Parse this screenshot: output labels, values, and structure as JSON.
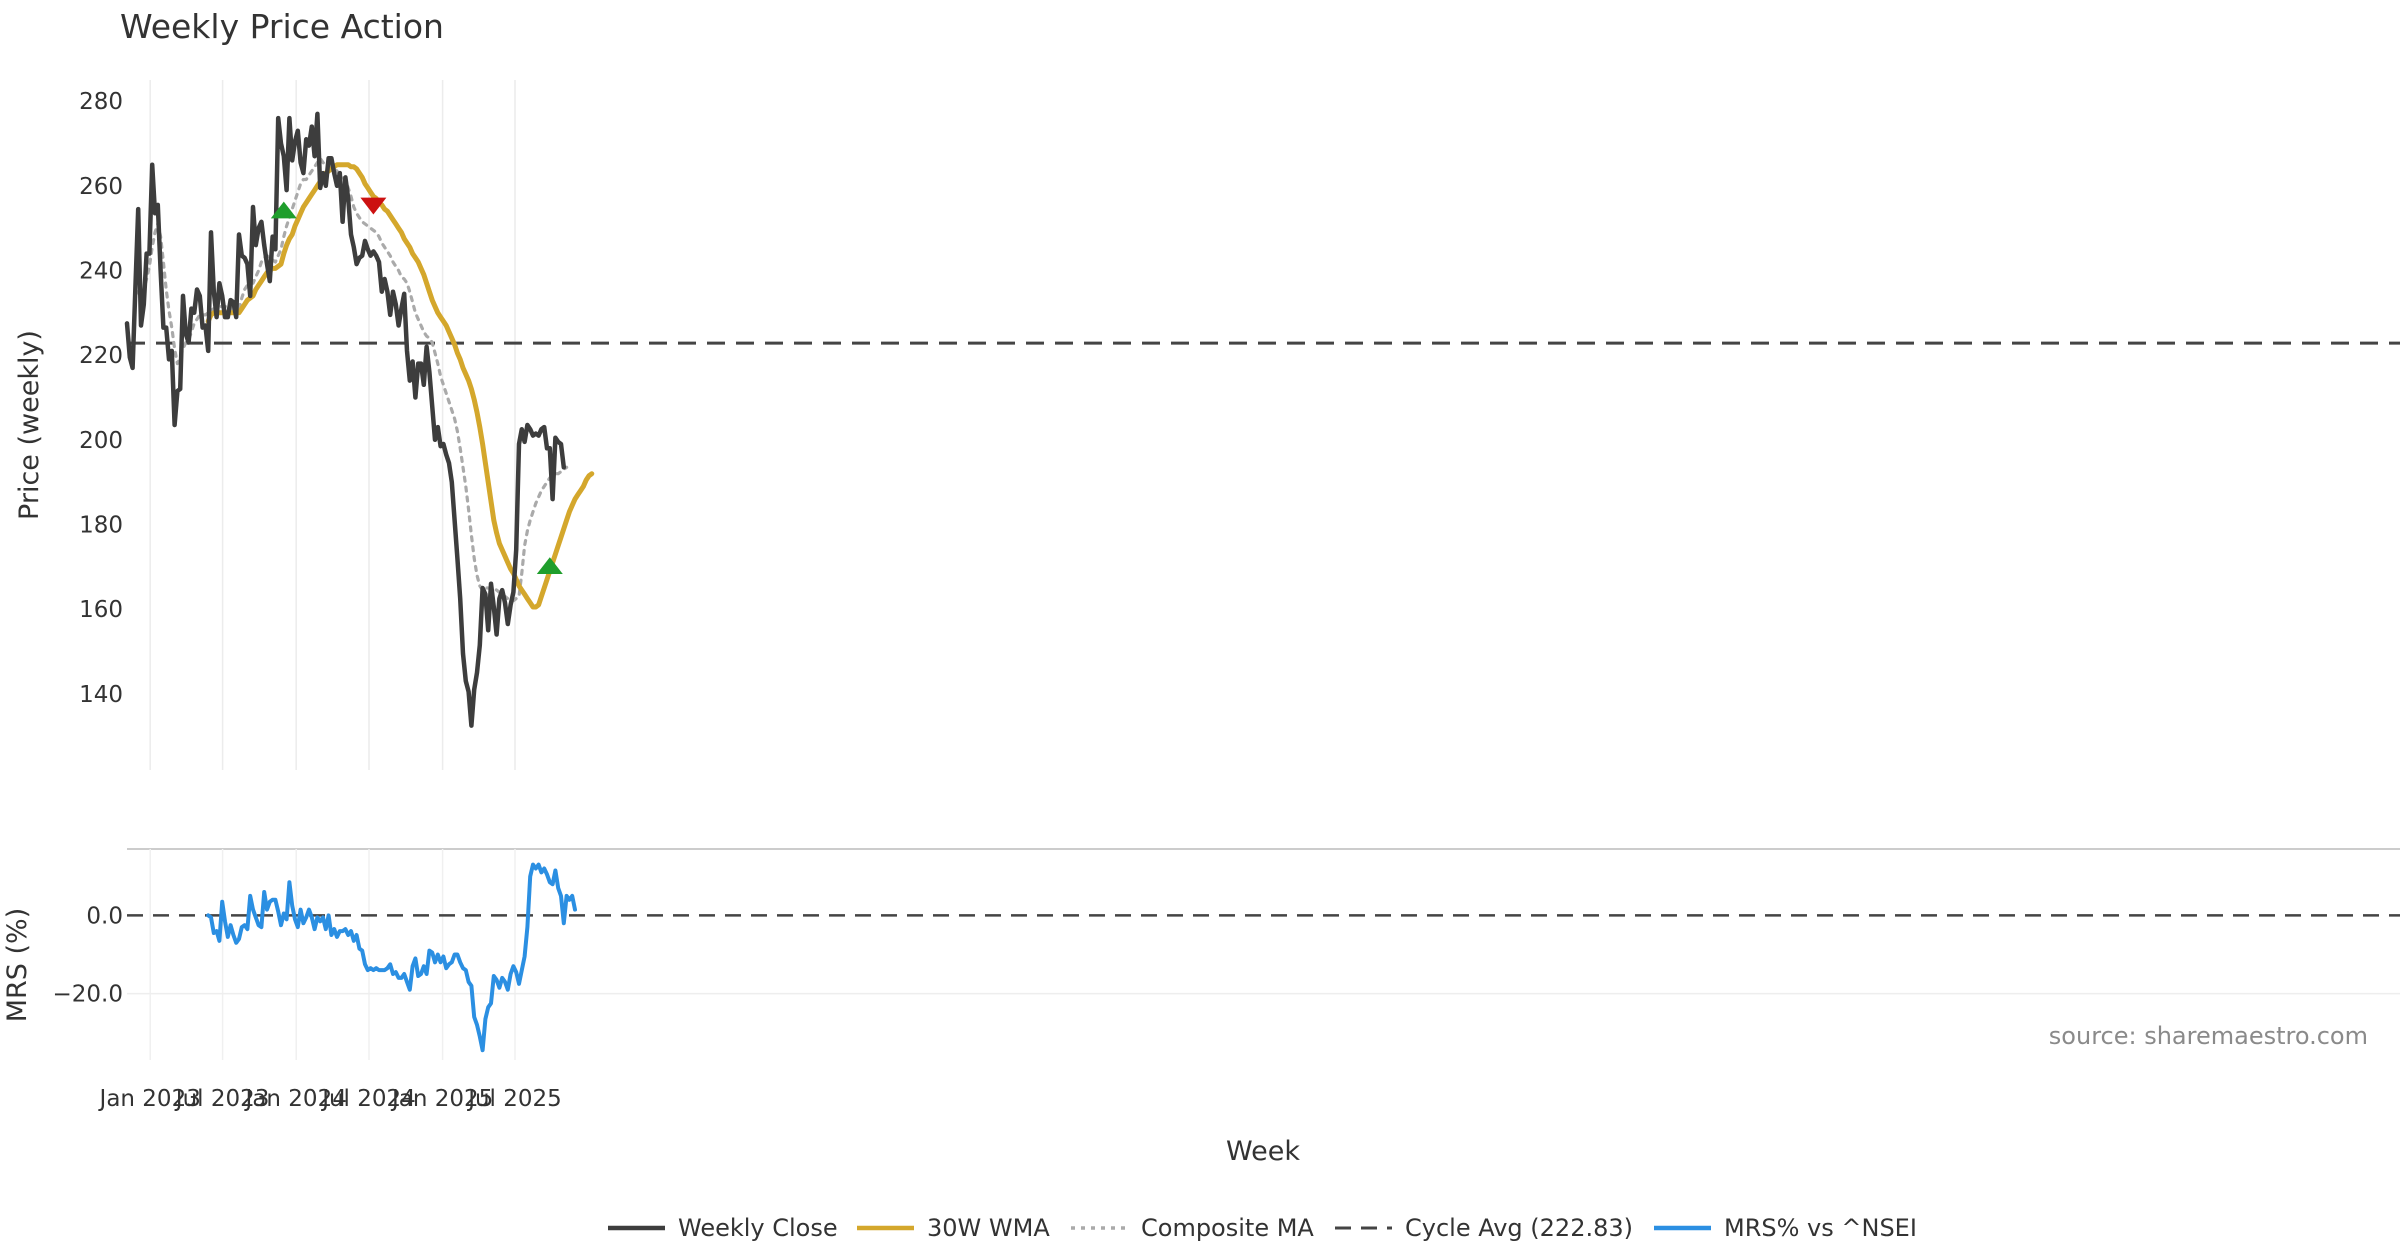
{
  "chart_data": [
    {
      "type": "line",
      "title": "Weekly Price Action",
      "ylabel": "Price (weekly)",
      "xlabel": "Week",
      "ylim": [
        122,
        285
      ],
      "yticks": [
        140,
        160,
        180,
        200,
        220,
        240,
        260,
        280
      ],
      "x_ticks": [
        "Jan 2023",
        "Jul 2023",
        "Jan 2024",
        "Jul 2024",
        "Jan 2025",
        "Jul 2025"
      ],
      "x_start": "2022-11-04",
      "x_step_weeks": 1,
      "cycle_avg": 222.83,
      "series": [
        {
          "name": "Weekly Close",
          "color": "#3d3d3d",
          "style": "solid",
          "start_index": 0,
          "values": [
            227.5,
            219.5,
            217,
            236,
            254.5,
            227,
            232,
            244,
            244,
            265,
            253.5,
            255.5,
            240,
            226.5,
            226.5,
            219,
            221,
            203.5,
            211.5,
            212,
            234,
            225,
            223,
            231,
            230,
            235.5,
            234,
            226.5,
            227,
            221,
            249,
            235,
            229,
            237,
            234,
            229,
            229,
            233,
            232.5,
            229,
            248.5,
            243.5,
            243,
            241.5,
            234,
            255,
            246,
            250,
            251.5,
            246,
            241.5,
            237.5,
            248,
            245,
            276,
            270,
            267,
            259,
            276,
            266,
            270.5,
            273,
            265.5,
            263,
            271,
            269.5,
            274,
            267,
            277,
            259.5,
            263,
            260,
            266.5,
            266.5,
            263,
            260,
            263,
            251.5,
            262,
            257,
            248.5,
            245.5,
            241.5,
            243,
            243.5,
            247,
            245,
            243.5,
            244.5,
            243.5,
            242,
            235,
            238,
            235,
            229.5,
            235,
            232,
            227,
            231,
            234.5,
            221,
            214,
            218.5,
            210,
            218,
            218,
            213,
            222,
            216,
            208,
            200,
            203,
            198.5,
            199,
            196.5,
            194.5,
            190,
            181,
            172,
            162.5,
            149.5,
            143,
            140.5,
            132.5,
            141,
            145,
            151.5,
            165,
            163.5,
            155,
            166,
            160.5,
            154,
            162.5,
            164.5,
            161.5,
            156.5,
            161,
            164,
            174,
            199,
            202.5,
            199.5,
            203.5,
            202.5,
            201,
            201.5,
            201,
            202.5,
            203,
            198,
            198,
            186,
            200.5,
            199.5,
            199,
            193.5
          ]
        },
        {
          "name": "30W WMA",
          "color": "#d4a72c",
          "style": "solid",
          "start_index": 29,
          "values": [
            228,
            229.5,
            230,
            230,
            230,
            230,
            230,
            230,
            230,
            230,
            230,
            230,
            231,
            232,
            233,
            233.5,
            234,
            235.5,
            236.5,
            237.5,
            238.5,
            239.5,
            240,
            240.5,
            240.5,
            241,
            241.5,
            244,
            246,
            247.5,
            248.5,
            250.5,
            252,
            253.5,
            255,
            256,
            257,
            258,
            259,
            260,
            261,
            262,
            263,
            263.5,
            264,
            264.5,
            265,
            265,
            265,
            265,
            265,
            264.5,
            264.5,
            264,
            263,
            262,
            260.5,
            259.5,
            258.5,
            257.5,
            257,
            256,
            255.5,
            254.5,
            254,
            253,
            252,
            251,
            250,
            249,
            247.5,
            246.5,
            245.5,
            244,
            243,
            242,
            240.5,
            239,
            237,
            235,
            233,
            231.5,
            230,
            229,
            228,
            227,
            225.5,
            224,
            222.5,
            220.5,
            219,
            217,
            215.5,
            214,
            212,
            209.5,
            206.5,
            203,
            199,
            194.5,
            190,
            185.5,
            181,
            178,
            175.5,
            174,
            172.5,
            171,
            169.5,
            168.5,
            167,
            165.5,
            164.5,
            163.5,
            162.5,
            161.5,
            160.5,
            160.5,
            161,
            163,
            165,
            167,
            169,
            171,
            173,
            175,
            177,
            179,
            181,
            183,
            184.5,
            186,
            187,
            188,
            189,
            190.5,
            191.5,
            192
          ]
        },
        {
          "name": "Composite MA",
          "color": "#aaaaaa",
          "style": "dotted",
          "start_index": 3,
          "values": [
            235.5,
            234.5,
            234.5,
            235.5,
            238,
            241,
            245.5,
            249,
            251,
            248,
            242,
            235.5,
            230.5,
            226.5,
            221.5,
            218,
            219.5,
            221.5,
            223,
            223.5,
            225.5,
            227.5,
            228.5,
            229.5,
            229.5,
            229.5,
            230,
            230.5,
            231,
            231,
            231.5,
            231.5,
            231.5,
            231.5,
            231,
            231,
            230.5,
            231,
            233.5,
            235.5,
            236.5,
            237,
            237,
            238.5,
            240,
            242,
            243,
            243.5,
            243,
            242.5,
            242,
            243.5,
            245,
            248,
            250.5,
            252.5,
            254.5,
            256.5,
            258.5,
            260.5,
            261.5,
            261.5,
            262.5,
            263.5,
            264.5,
            265.5,
            266.5,
            265.5,
            265,
            265,
            264.5,
            264,
            263.5,
            262.5,
            262,
            261.5,
            259.5,
            257.5,
            255,
            253.5,
            252.5,
            251.5,
            251,
            250.5,
            250,
            249.5,
            249,
            248,
            246.5,
            245.5,
            244.5,
            243.5,
            242,
            241,
            240,
            238.5,
            238,
            237,
            235,
            232.5,
            230,
            228.5,
            227,
            225.5,
            224.5,
            224,
            223,
            220.5,
            218,
            215,
            213,
            211,
            209,
            207,
            205,
            202,
            198,
            193.5,
            189,
            183.5,
            177.5,
            172,
            168,
            165.5,
            164.5,
            165,
            165,
            165,
            165,
            164.5,
            164,
            163.5,
            163,
            162.5,
            162,
            162,
            162.5,
            163,
            168.5,
            175,
            178.5,
            181,
            183,
            185,
            186.5,
            188,
            189,
            190,
            191,
            191.5,
            192,
            192,
            192.5,
            193,
            193.5
          ]
        }
      ],
      "markers": [
        {
          "kind": "buy",
          "symbol": "triangle-up",
          "color": "#1f9e2c",
          "index": 56,
          "value": 254
        },
        {
          "kind": "sell",
          "symbol": "triangle-down",
          "color": "#cc1111",
          "index": 88,
          "value": 255.5
        },
        {
          "kind": "buy",
          "symbol": "triangle-up",
          "color": "#1f9e2c",
          "index": 151,
          "value": 170
        }
      ]
    },
    {
      "type": "line",
      "ylabel": "MRS (%)",
      "ylim": [
        -37,
        17
      ],
      "yticks": [
        0,
        -20
      ],
      "ytick_labels": [
        "0.0",
        "−20.0"
      ],
      "zero_line": 0,
      "series": [
        {
          "name": "MRS% vs ^NSEI",
          "color": "#2b8fe2",
          "style": "solid",
          "start_index": 29,
          "values": [
            0,
            -0.5,
            -4.5,
            -4,
            -6.5,
            3.5,
            -1.5,
            -5.5,
            -2.5,
            -5,
            -7,
            -6,
            -3,
            -2.5,
            -3.5,
            5,
            1.5,
            -0.5,
            -2.5,
            -3,
            6,
            1.5,
            3.5,
            4,
            4,
            1,
            -2.5,
            0.5,
            -1,
            8.5,
            2.5,
            -1,
            -3,
            1.5,
            -2,
            -0.5,
            1.5,
            -0.5,
            -3.5,
            -0.5,
            -1.5,
            -0.5,
            -3.5,
            0,
            -5,
            -3.5,
            -5.5,
            -4,
            -4,
            -3.5,
            -5,
            -4,
            -6.5,
            -5,
            -8.5,
            -9,
            -12.5,
            -14,
            -13.5,
            -14,
            -13.5,
            -14,
            -14,
            -14,
            -13.5,
            -12.5,
            -15,
            -14.5,
            -16,
            -16,
            -15,
            -17,
            -19,
            -13,
            -11,
            -15.5,
            -15,
            -13,
            -15,
            -9,
            -9.5,
            -12,
            -10,
            -12,
            -10.5,
            -13.5,
            -12.5,
            -12,
            -10,
            -10,
            -12,
            -13.5,
            -14,
            -17,
            -18,
            -26,
            -28,
            -31,
            -34.5,
            -26.5,
            -23.5,
            -22.5,
            -15.5,
            -16.5,
            -18.5,
            -16,
            -17,
            -19,
            -15,
            -13,
            -14.5,
            -17.5,
            -14,
            -10.5,
            -3,
            10,
            13,
            12,
            13,
            11,
            12,
            10.5,
            8.5,
            8,
            11.5,
            7,
            5,
            -2,
            5,
            4,
            5,
            1.5
          ]
        }
      ]
    }
  ],
  "source": "source: sharemaestro.com",
  "legend": [
    {
      "label": "Weekly Close",
      "color": "#3d3d3d",
      "style": "solid"
    },
    {
      "label": "30W WMA",
      "color": "#d4a72c",
      "style": "solid"
    },
    {
      "label": "Composite MA",
      "color": "#aaaaaa",
      "style": "dotted"
    },
    {
      "label": "Cycle Avg (222.83)",
      "color": "#444444",
      "style": "dashed"
    },
    {
      "label": "MRS% vs ^NSEI",
      "color": "#2b8fe2",
      "style": "solid"
    }
  ]
}
